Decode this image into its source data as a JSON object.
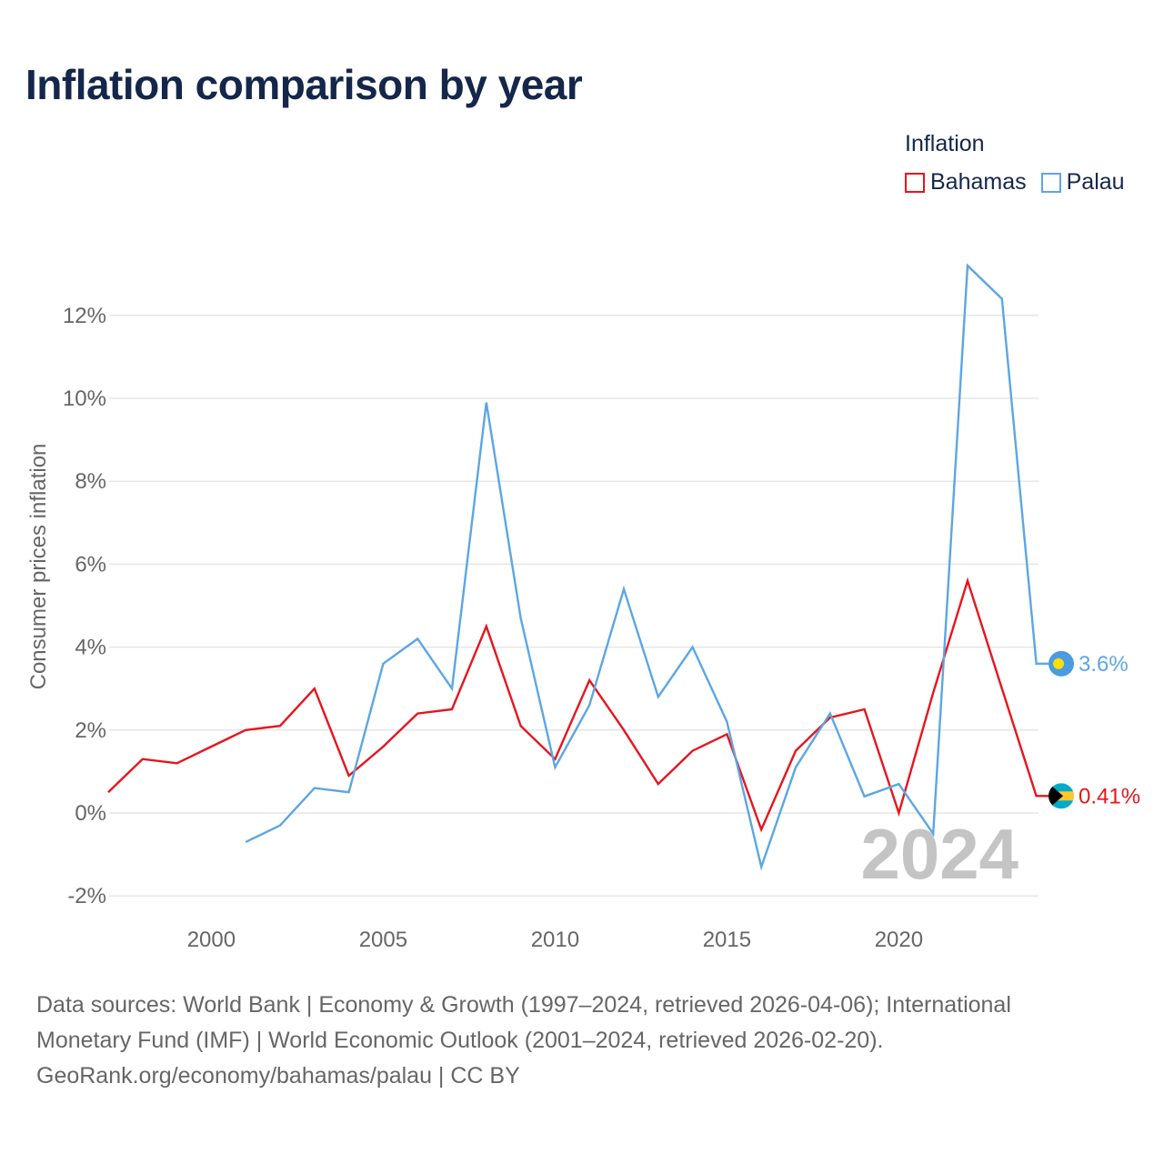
{
  "chart_data": {
    "type": "line",
    "title": "Inflation comparison by year",
    "legend_title": "Inflation",
    "ylabel": "Consumer prices inflation",
    "ylim": [
      -2.2,
      13.4
    ],
    "xlim": [
      1997,
      2024
    ],
    "y_ticks": [
      {
        "value": -2,
        "label": "-2%"
      },
      {
        "value": 0,
        "label": "0%"
      },
      {
        "value": 2,
        "label": "2%"
      },
      {
        "value": 4,
        "label": "4%"
      },
      {
        "value": 6,
        "label": "6%"
      },
      {
        "value": 8,
        "label": "8%"
      },
      {
        "value": 10,
        "label": "10%"
      },
      {
        "value": 12,
        "label": "12%"
      }
    ],
    "x_ticks": [
      {
        "value": 2000,
        "label": "2000"
      },
      {
        "value": 2005,
        "label": "2005"
      },
      {
        "value": 2010,
        "label": "2010"
      },
      {
        "value": 2015,
        "label": "2015"
      },
      {
        "value": 2020,
        "label": "2020"
      }
    ],
    "year_label": "2024",
    "series": [
      {
        "name": "Bahamas",
        "color": "#e8141d",
        "end_label": "0.41%",
        "flag": "bahamas-flag",
        "x": [
          1997,
          1998,
          1999,
          2000,
          2001,
          2002,
          2003,
          2004,
          2005,
          2006,
          2007,
          2008,
          2009,
          2010,
          2011,
          2012,
          2013,
          2014,
          2015,
          2016,
          2017,
          2018,
          2019,
          2020,
          2021,
          2022,
          2023,
          2024
        ],
        "values": [
          0.5,
          1.3,
          1.2,
          1.6,
          2.0,
          2.1,
          3.0,
          0.9,
          1.6,
          2.4,
          2.5,
          4.5,
          2.1,
          1.3,
          3.2,
          2.0,
          0.7,
          1.5,
          1.9,
          -0.4,
          1.5,
          2.3,
          2.5,
          0.0,
          2.9,
          5.6,
          3.0,
          0.41
        ]
      },
      {
        "name": "Palau",
        "color": "#5ca6e3",
        "end_label": "3.6%",
        "flag": "palau-flag",
        "x": [
          2001,
          2002,
          2003,
          2004,
          2005,
          2006,
          2007,
          2008,
          2009,
          2010,
          2011,
          2012,
          2013,
          2014,
          2015,
          2016,
          2017,
          2018,
          2019,
          2020,
          2021,
          2022,
          2023,
          2024
        ],
        "values": [
          -0.7,
          -0.3,
          0.6,
          0.5,
          3.6,
          4.2,
          3.0,
          9.9,
          4.7,
          1.1,
          2.6,
          5.4,
          2.8,
          4.0,
          2.2,
          -1.3,
          1.1,
          2.4,
          0.4,
          0.7,
          -0.5,
          13.2,
          12.4,
          3.6
        ]
      }
    ]
  },
  "footer": {
    "line1": "Data sources: World Bank | Economy & Growth (1997–2024, retrieved 2026-04-06); International",
    "line2": "Monetary Fund (IMF) | World Economic Outlook (2001–2024, retrieved 2026-02-20).",
    "line3": "GeoRank.org/economy/bahamas/palau | CC BY"
  },
  "colors": {
    "title": "#14274a",
    "axis_text": "#666666",
    "grid": "#e6e6e6",
    "watermark": "#c4c4c4"
  }
}
